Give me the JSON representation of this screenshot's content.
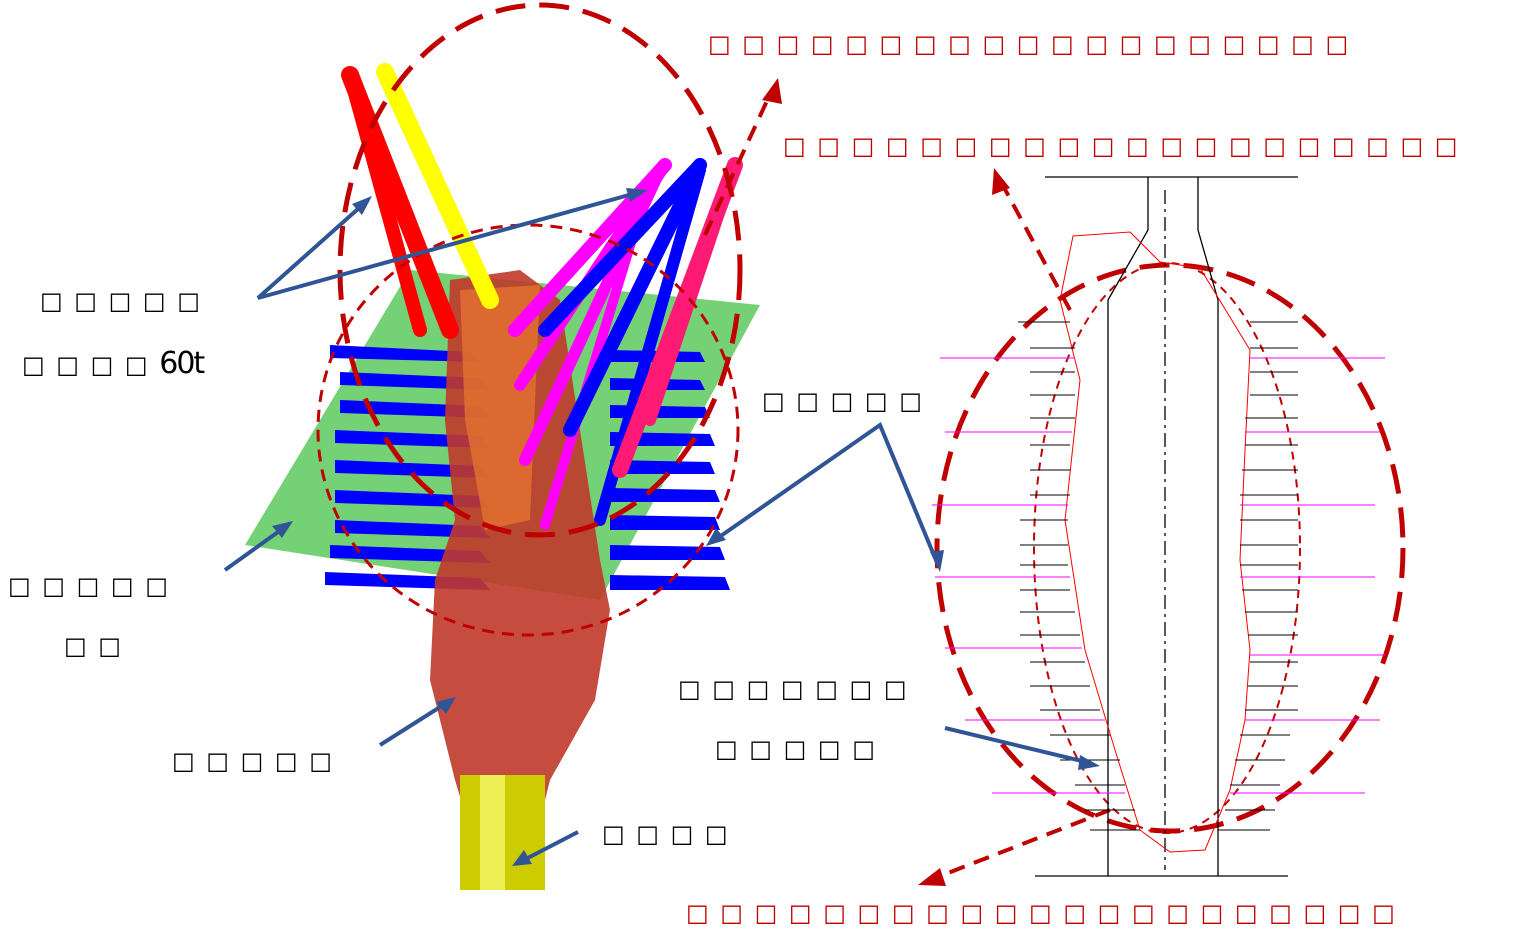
{
  "annotations": {
    "top_line_1": "□ □ □ □ □ □ □ □ □ □ □ □ □ □ □ □ □ □ □",
    "top_line_2": "□ □ □ □ □ □ □ □ □ □ □ □ □ □ □ □ □ □ □ □",
    "bottom_line": "□ □ □ □ □ □ □ □ □ □ □ □ □ □ □ □ □ □ □ □ □",
    "left_label_1a": "□ □ □ □ □",
    "left_label_1b": "□ □ □ □",
    "left_label_1b_suffix": "60t",
    "left_label_2a": "□ □ □ □ □",
    "left_label_2b": "□ □",
    "left_label_3": "□ □ □ □ □",
    "left_label_4": "□ □ □ □",
    "mid_label": "□ □ □ □ □",
    "right_label_a": "□ □ □ □ □ □ □",
    "right_label_b": "□ □ □ □ □"
  },
  "colors": {
    "annotation_red": "#c00000",
    "arrow_blue": "#2f5597",
    "cavity": "#c0392b",
    "fan_red": "#ff0000",
    "fan_yellow": "#ffff00",
    "fan_magenta": "#ff00ff",
    "fan_blue": "#0000ff",
    "fan_pink": "#ff1a75",
    "plane_green": "#66cc66",
    "shaft_yellow": "#cccc00"
  }
}
